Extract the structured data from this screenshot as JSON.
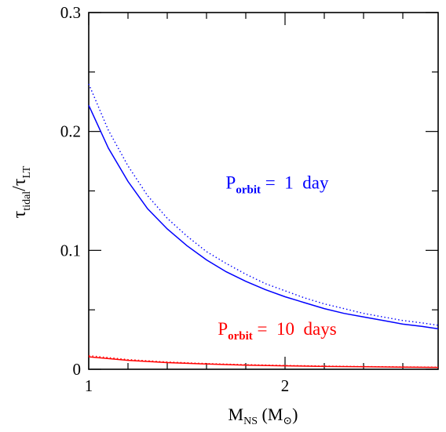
{
  "chart_data": {
    "type": "line",
    "title": "",
    "xlabel": {
      "main": "M",
      "sub": "NS",
      "unit_open": " (M",
      "unit_sub": "⊙",
      "unit_close": ")"
    },
    "ylabel": {
      "tau1": "τ",
      "sub1": "tidal",
      "slash": "/",
      "tau2": "τ",
      "sub2": "LT"
    },
    "xlim": [
      1,
      2.78
    ],
    "ylim": [
      0,
      0.3
    ],
    "x_major_ticks": [
      1,
      2
    ],
    "x_minor_ticks": [
      1.2,
      1.4,
      1.6,
      1.8,
      2.2,
      2.4,
      2.6
    ],
    "x_tick_labels": [
      "1",
      "2"
    ],
    "y_major_ticks": [
      0,
      0.1,
      0.2,
      0.3
    ],
    "y_minor_ticks": [
      0.05,
      0.15,
      0.25
    ],
    "y_tick_labels": [
      "0",
      "0.1",
      "0.2",
      "0.3"
    ],
    "grid": false,
    "colors": {
      "blue": "#0000ff",
      "red": "#ff0000",
      "axis": "#000000"
    },
    "series": [
      {
        "group": "1 day",
        "style": "solid",
        "color": "#0000ff",
        "x": [
          1.0,
          1.1,
          1.2,
          1.3,
          1.4,
          1.5,
          1.6,
          1.7,
          1.8,
          1.9,
          2.0,
          2.1,
          2.2,
          2.3,
          2.4,
          2.5,
          2.6,
          2.7,
          2.78
        ],
        "y": [
          0.222,
          0.186,
          0.158,
          0.135,
          0.118,
          0.104,
          0.092,
          0.082,
          0.074,
          0.067,
          0.061,
          0.056,
          0.051,
          0.047,
          0.044,
          0.041,
          0.038,
          0.036,
          0.034
        ]
      },
      {
        "group": "1 day",
        "style": "dotted",
        "color": "#0000ff",
        "x": [
          1.0,
          1.1,
          1.2,
          1.3,
          1.4,
          1.5,
          1.6,
          1.7,
          1.8,
          1.9,
          2.0,
          2.1,
          2.2,
          2.3,
          2.4,
          2.5,
          2.6,
          2.7,
          2.78
        ],
        "y": [
          0.24,
          0.201,
          0.171,
          0.146,
          0.127,
          0.112,
          0.099,
          0.089,
          0.08,
          0.072,
          0.066,
          0.06,
          0.055,
          0.051,
          0.047,
          0.044,
          0.041,
          0.039,
          0.037
        ]
      },
      {
        "group": "10 days",
        "style": "solid",
        "color": "#ff0000",
        "x": [
          1.0,
          1.2,
          1.4,
          1.6,
          1.8,
          2.0,
          2.2,
          2.4,
          2.6,
          2.78
        ],
        "y": [
          0.0105,
          0.0075,
          0.0056,
          0.0044,
          0.0035,
          0.0029,
          0.0024,
          0.0021,
          0.0018,
          0.0016
        ]
      },
      {
        "group": "10 days",
        "style": "dotted",
        "color": "#ff0000",
        "x": [
          1.0,
          1.2,
          1.4,
          1.6,
          1.8,
          2.0,
          2.2,
          2.4,
          2.6,
          2.78
        ],
        "y": [
          0.0115,
          0.0082,
          0.0061,
          0.0048,
          0.0039,
          0.0032,
          0.0027,
          0.0023,
          0.002,
          0.0018
        ]
      }
    ],
    "annotations": [
      {
        "color": "#0000ff",
        "main": "P",
        "sub": "orbit",
        "rest": " = 1 day",
        "x": 1.96,
        "y": 0.152
      },
      {
        "color": "#ff0000",
        "main": "P",
        "sub": "orbit",
        "rest": " = 10 days",
        "x": 1.96,
        "y": 0.029
      }
    ]
  }
}
